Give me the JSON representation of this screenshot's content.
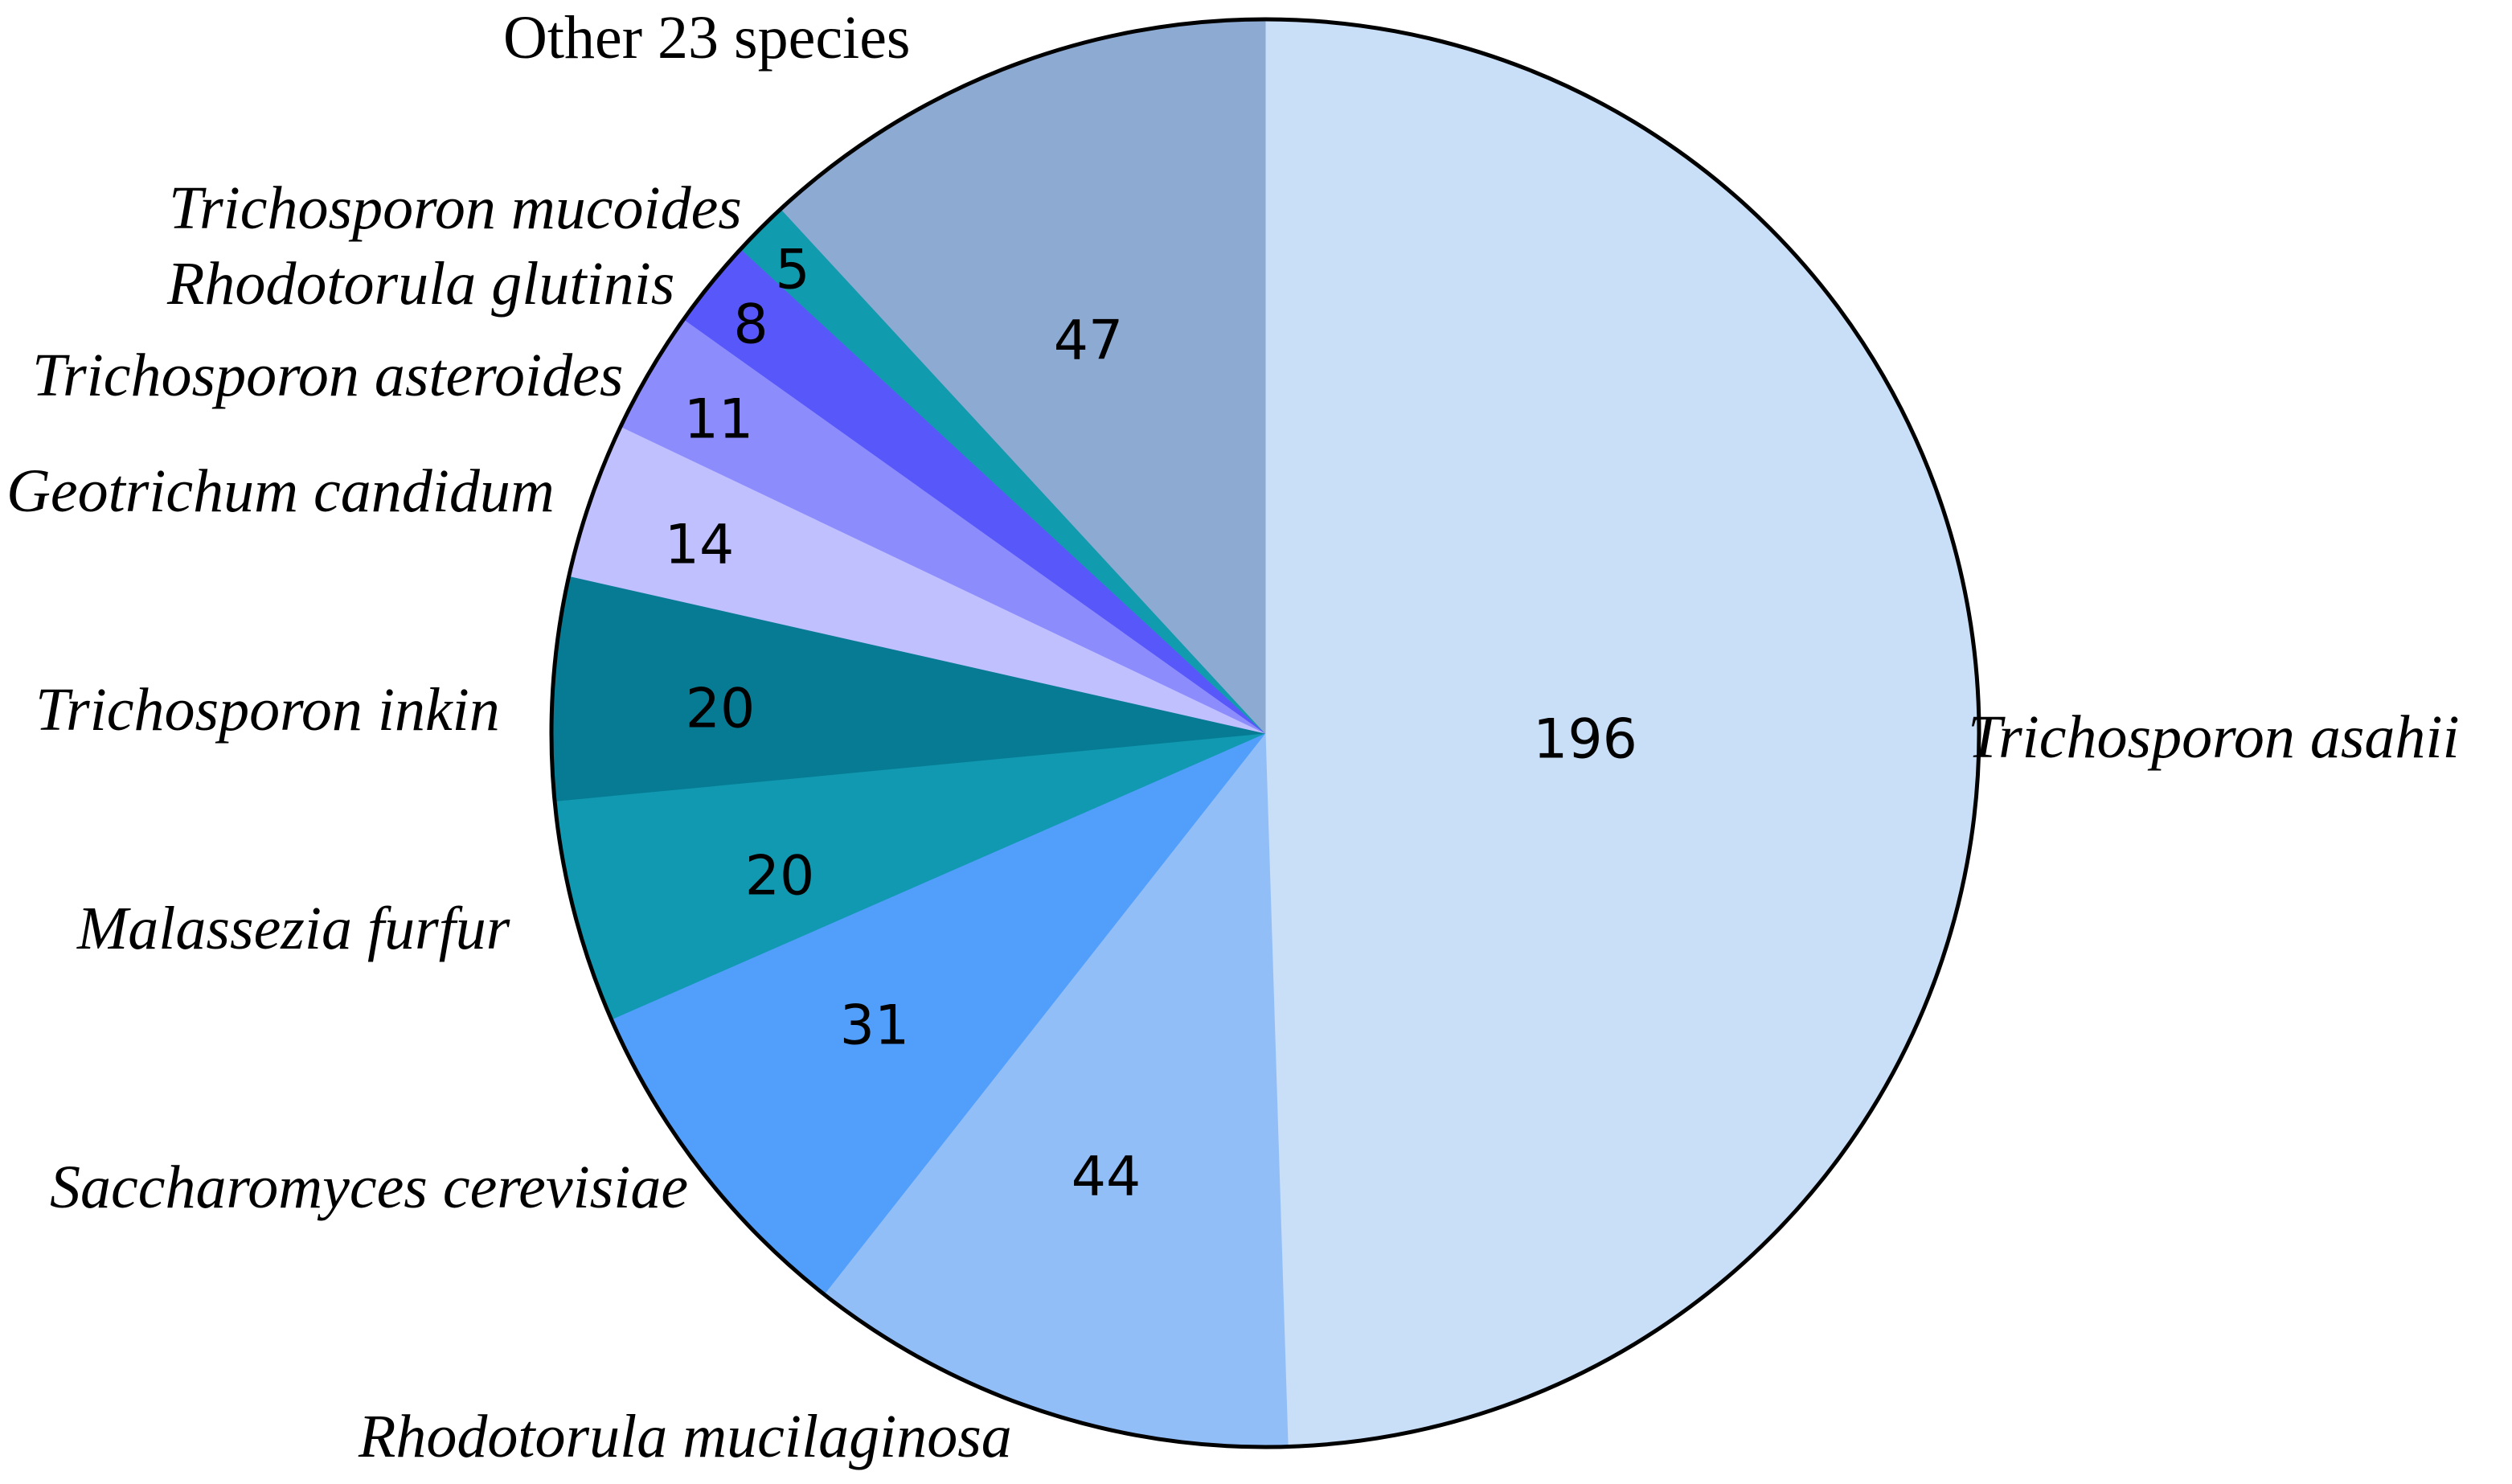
{
  "chart_data": {
    "type": "pie",
    "title": "",
    "start": "12 o'clock",
    "direction": "clockwise",
    "slices": [
      {
        "label": "Trichosporon asahii",
        "value": 196,
        "color": "#C9DEF7",
        "italic": true
      },
      {
        "label": "Rhodotorula mucilaginosa",
        "value": 44,
        "color": "#92BEF8",
        "italic": true
      },
      {
        "label": "Saccharomyces cerevisiae",
        "value": 31,
        "color": "#529FFB",
        "italic": true
      },
      {
        "label": "Malassezia furfur",
        "value": 20,
        "color": "#1199B2",
        "italic": true
      },
      {
        "label": "Trichosporon inkin",
        "value": 20,
        "color": "#077B94",
        "italic": true
      },
      {
        "label": "Geotrichum candidum",
        "value": 14,
        "color": "#C0C0FE",
        "italic": true
      },
      {
        "label": "Trichosporon asteroides",
        "value": 11,
        "color": "#8C8CFD",
        "italic": true
      },
      {
        "label": "Rhodotorula glutinis",
        "value": 8,
        "color": "#5858FA",
        "italic": true
      },
      {
        "label": "Trichosporon mucoides",
        "value": 5,
        "color": "#119BAE",
        "italic": true
      },
      {
        "label": "Other 23 species",
        "value": 47,
        "color": "#8DAAD2",
        "italic": false
      }
    ]
  }
}
